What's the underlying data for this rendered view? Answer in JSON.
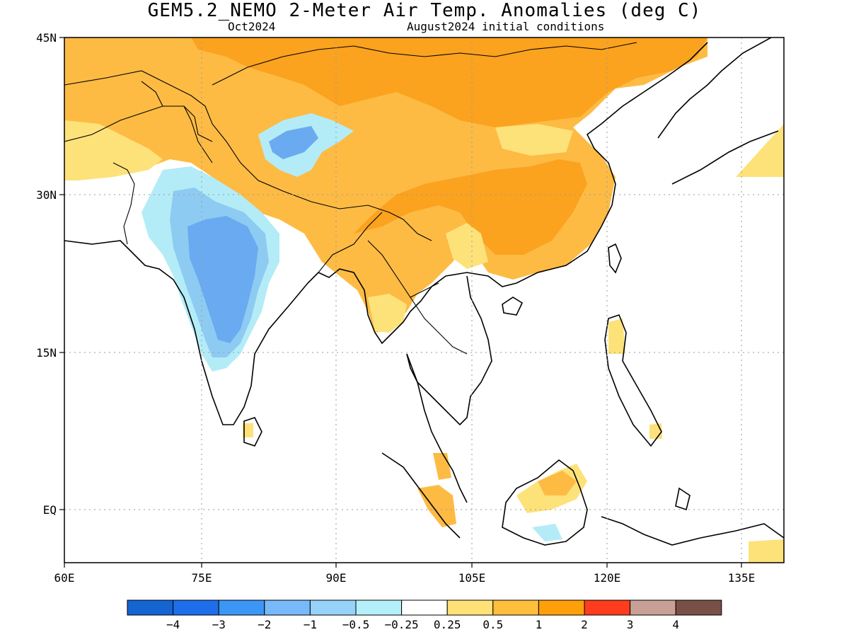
{
  "header": {
    "title": "GEM5.2_NEMO 2-Meter Air Temp. Anomalies (deg C)",
    "target_month": "Oct2024",
    "initial_conditions": "August2024 initial conditions"
  },
  "map": {
    "lon_ticks": [
      "60E",
      "75E",
      "90E",
      "105E",
      "120E",
      "135E"
    ],
    "lat_ticks": [
      "45N",
      "30N",
      "15N",
      "EQ"
    ],
    "lon_range": [
      60,
      140
    ],
    "lat_range": [
      -5,
      45
    ],
    "colors": {
      "warm_05": "#fde27a",
      "warm_1": "#fdbb44",
      "warm_2": "#fba21f",
      "cool_025": "#b3ecf7",
      "cool_05": "#8ecbf2",
      "cool_1": "#6aaaf0"
    }
  },
  "colorbar": {
    "colors": [
      "#1464d2",
      "#1e6eeb",
      "#3c96f5",
      "#78b9fa",
      "#96d2fa",
      "#b4f0fa",
      "#ffffff",
      "#ffe178",
      "#ffbe3c",
      "#ffa00a",
      "#ff3c1e",
      "#c8a096",
      "#785046"
    ],
    "labels": [
      "−4",
      "−3",
      "−2",
      "−1",
      "−0.5",
      "−0.25",
      "0.25",
      "0.5",
      "1",
      "2",
      "3",
      "4"
    ]
  }
}
